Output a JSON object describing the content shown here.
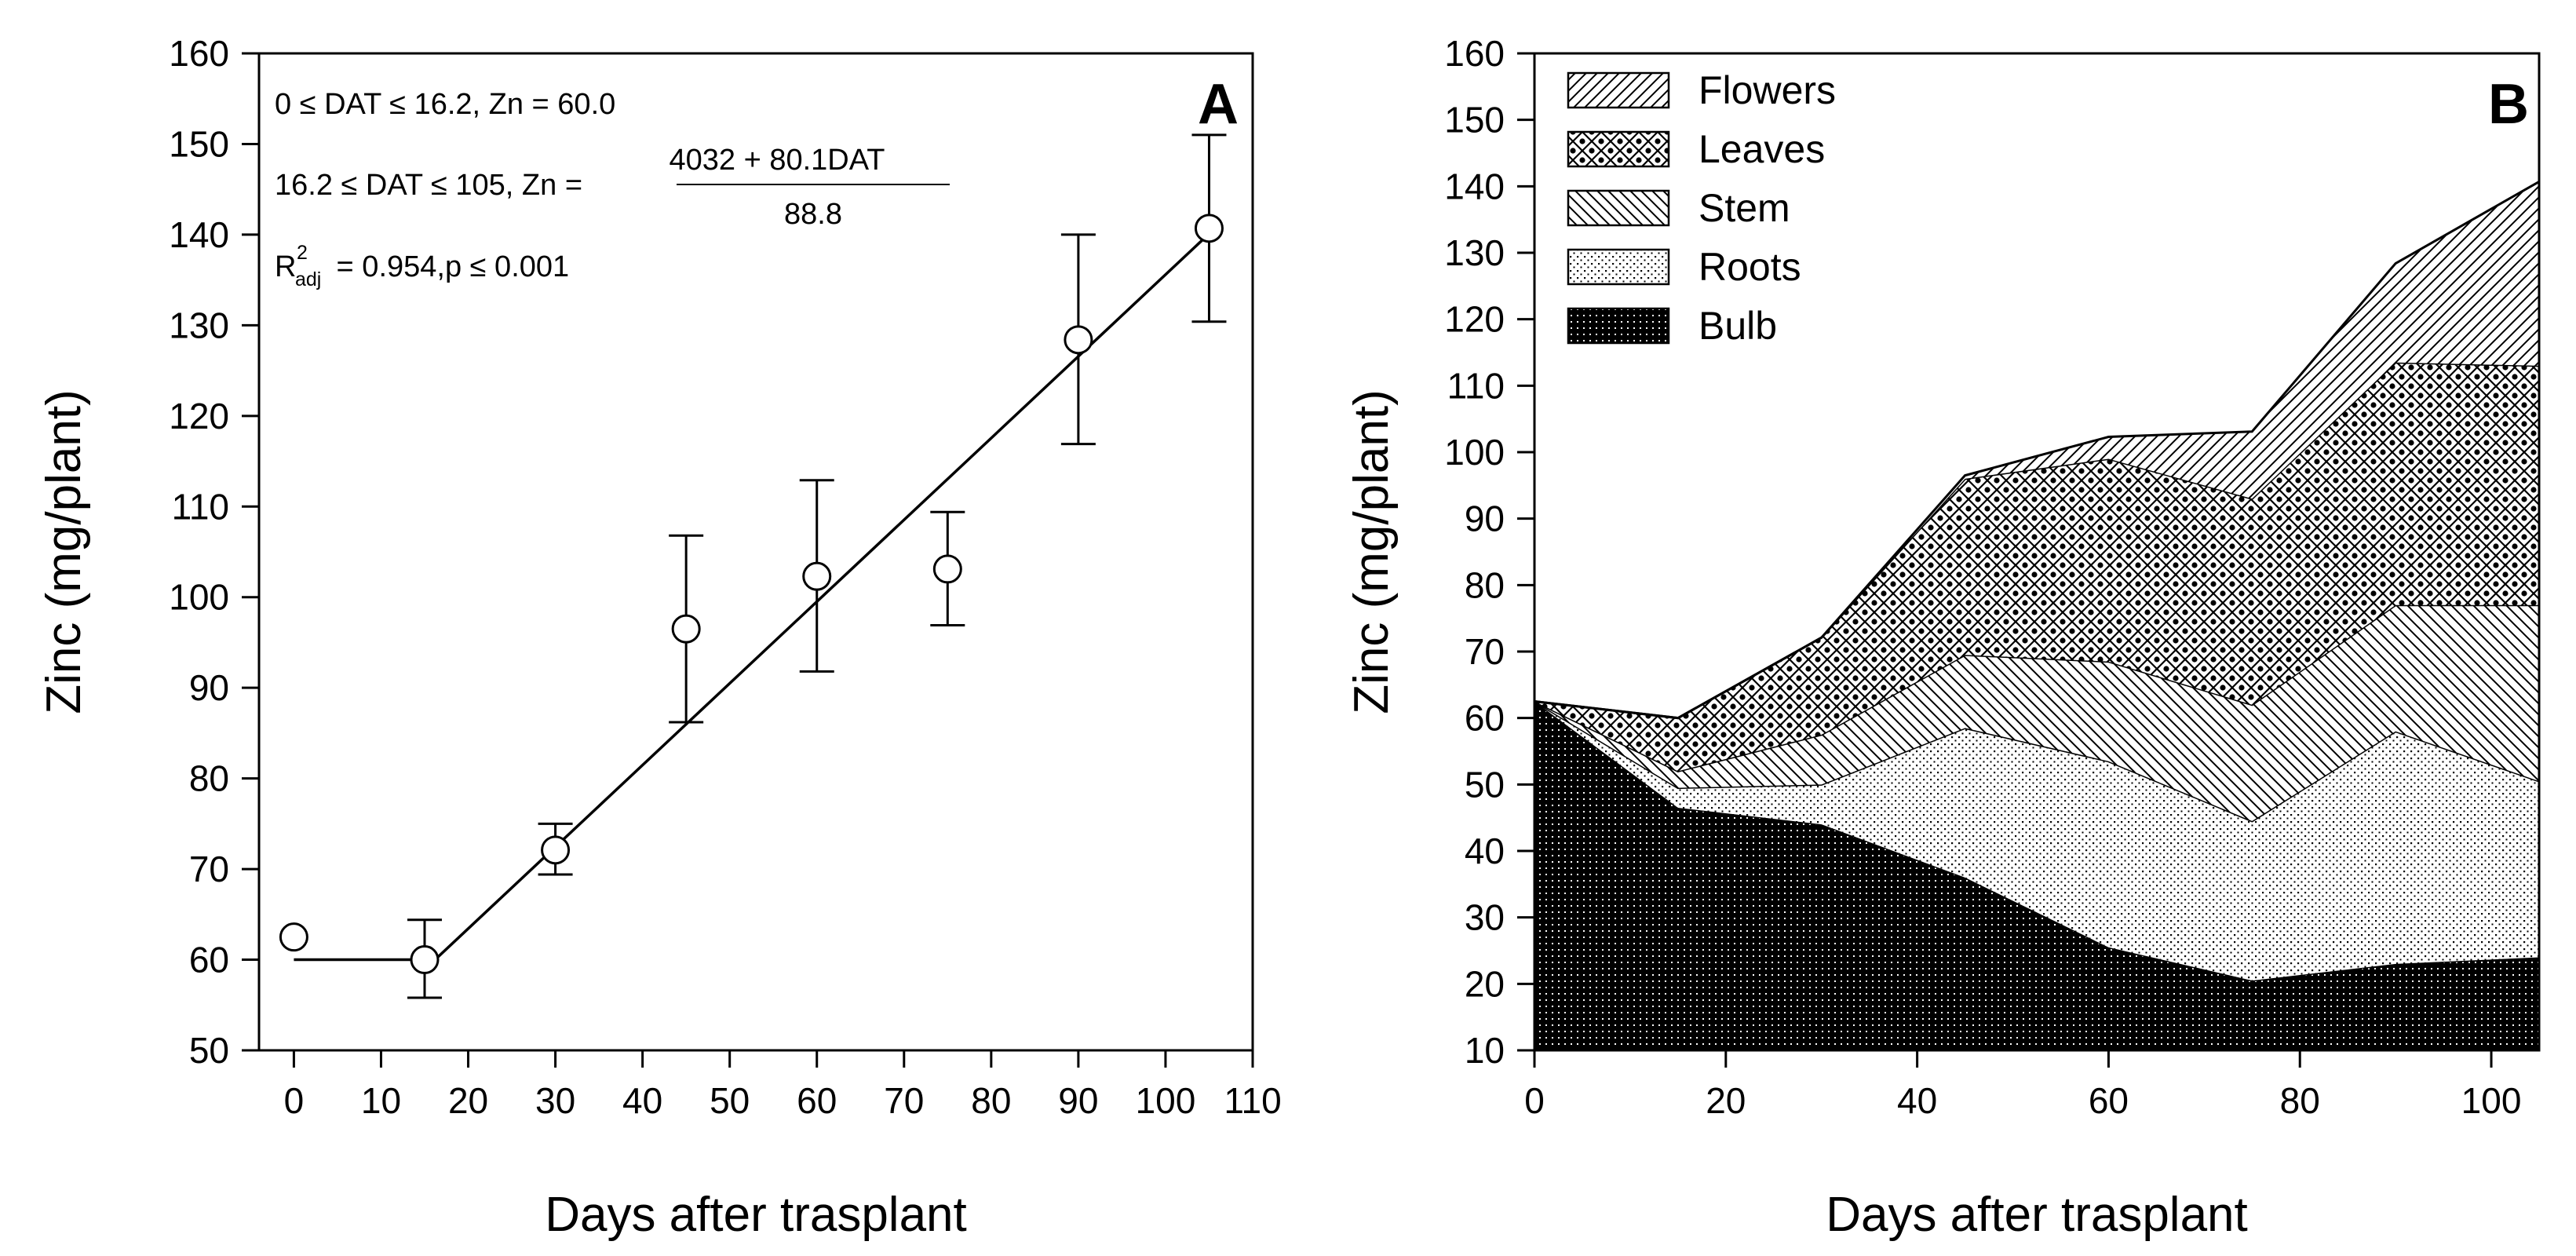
{
  "chart_data": [
    {
      "panel": "A",
      "type": "scatter",
      "panel_label": "A",
      "xlabel": "Days after trasplant",
      "ylabel": "Zinc (mg/plant)",
      "xlim": [
        -4,
        110
      ],
      "ylim": [
        50,
        160
      ],
      "xticks": [
        0,
        10,
        20,
        30,
        40,
        50,
        60,
        70,
        80,
        90,
        100,
        110
      ],
      "yticks": [
        50,
        60,
        70,
        80,
        90,
        100,
        110,
        120,
        130,
        140,
        150,
        160
      ],
      "points": [
        {
          "x": 0,
          "y": 62.5,
          "err_low": 62.5,
          "err_high": 62.5
        },
        {
          "x": 15,
          "y": 60.0,
          "err_low": 55.8,
          "err_high": 64.4
        },
        {
          "x": 30,
          "y": 72.1,
          "err_low": 69.4,
          "err_high": 75.0
        },
        {
          "x": 45,
          "y": 96.5,
          "err_low": 86.2,
          "err_high": 106.8
        },
        {
          "x": 60,
          "y": 102.3,
          "err_low": 91.8,
          "err_high": 112.9
        },
        {
          "x": 75,
          "y": 103.1,
          "err_low": 96.9,
          "err_high": 109.4
        },
        {
          "x": 90,
          "y": 128.4,
          "err_low": 116.9,
          "err_high": 140.0
        },
        {
          "x": 105,
          "y": 140.7,
          "err_low": 130.4,
          "err_high": 151.0
        }
      ],
      "fit_line": [
        [
          0,
          60.0
        ],
        [
          16.2,
          60.0
        ],
        [
          105,
          140.1
        ]
      ],
      "equations": {
        "line1": "0 ≤ DAT ≤ 16.2,   Zn = 60.0",
        "line2_left": "16.2 ≤ DAT ≤ 105,   Zn =",
        "line2_numerator": "4032 + 80.1DAT",
        "line2_denominator": "88.8",
        "r2_base": "R",
        "r2_sup": "2",
        "r2_sub": "adj",
        "r2_rest": " = 0.954,p ≤ 0.001"
      }
    },
    {
      "panel": "B",
      "type": "area",
      "stacked": true,
      "panel_label": "B",
      "xlabel": "Days after trasplant",
      "ylabel": "Zinc (mg/plant)",
      "xlim": [
        0,
        105
      ],
      "ylim": [
        10,
        160
      ],
      "xticks": [
        0,
        20,
        40,
        60,
        80,
        100
      ],
      "yticks": [
        10,
        20,
        30,
        40,
        50,
        60,
        70,
        80,
        90,
        100,
        110,
        120,
        130,
        140,
        150,
        160
      ],
      "legend_position": "top-left",
      "x": [
        0,
        15,
        30,
        45,
        60,
        75,
        90,
        105
      ],
      "series": [
        {
          "name": "Bulb",
          "cumulative": [
            62.5,
            46.5,
            44.0,
            36.0,
            25.5,
            20.5,
            23.0,
            24.0
          ]
        },
        {
          "name": "Roots",
          "cumulative": [
            62.5,
            49.5,
            50.0,
            58.5,
            53.5,
            44.5,
            58.0,
            50.5
          ]
        },
        {
          "name": "Stem",
          "cumulative": [
            62.5,
            52.0,
            57.5,
            69.5,
            68.5,
            62.0,
            77.0,
            77.0
          ]
        },
        {
          "name": "Leaves",
          "cumulative": [
            62.5,
            60.0,
            72.1,
            96.0,
            99.0,
            93.0,
            113.5,
            113.0
          ]
        },
        {
          "name": "Flowers",
          "cumulative": [
            62.5,
            60.0,
            72.1,
            96.5,
            102.3,
            103.1,
            128.4,
            140.7
          ]
        }
      ],
      "legend": [
        "Flowers",
        "Leaves",
        "Stem",
        "Roots",
        "Bulb"
      ]
    }
  ]
}
